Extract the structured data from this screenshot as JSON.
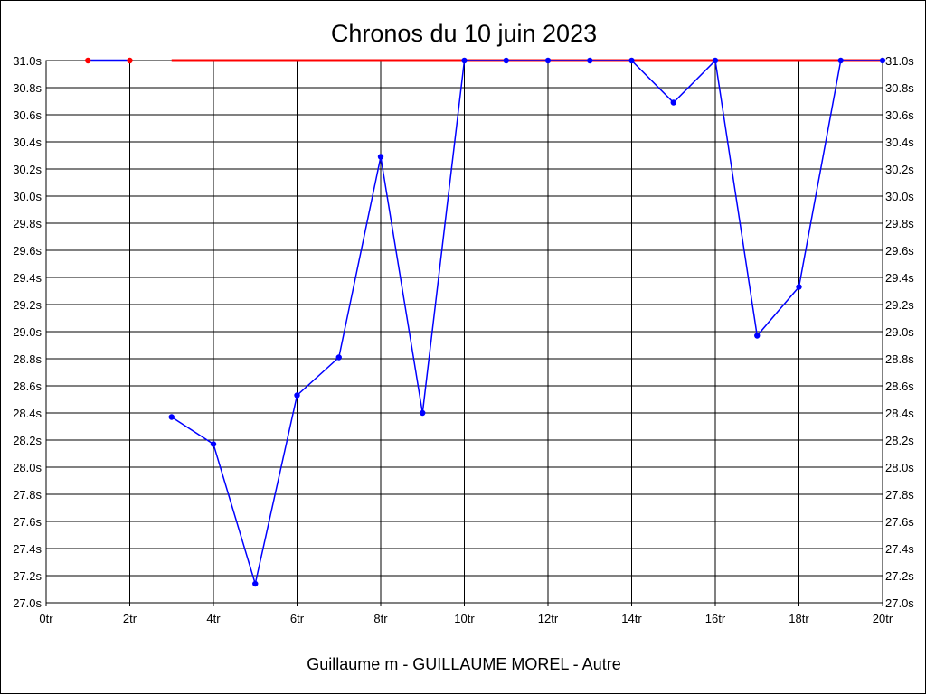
{
  "chart_data": {
    "type": "line",
    "title": "Chronos du 10 juin 2023",
    "xlabel": "Guillaume m - GUILLAUME MOREL - Autre",
    "ylabel": "",
    "xlim": [
      0,
      20
    ],
    "ylim": [
      27.0,
      31.0
    ],
    "x_ticks": [
      "0tr",
      "2tr",
      "4tr",
      "6tr",
      "8tr",
      "10tr",
      "12tr",
      "14tr",
      "16tr",
      "18tr",
      "20tr"
    ],
    "y_ticks": [
      "27.0s",
      "27.2s",
      "27.4s",
      "27.6s",
      "27.8s",
      "28.0s",
      "28.2s",
      "28.4s",
      "28.6s",
      "28.8s",
      "29.0s",
      "29.2s",
      "29.4s",
      "29.6s",
      "29.8s",
      "30.0s",
      "30.2s",
      "30.4s",
      "30.6s",
      "30.8s",
      "31.0s"
    ],
    "grid": true,
    "series": [
      {
        "color": "#0000ff",
        "x": [
          1,
          2,
          3,
          4,
          5,
          6,
          7,
          8,
          9,
          10,
          11,
          12,
          13,
          14,
          15,
          16,
          17,
          18,
          19,
          20
        ],
        "values": [
          31.0,
          31.0,
          28.37,
          28.17,
          27.14,
          28.53,
          28.81,
          30.29,
          28.4,
          31.0,
          31.0,
          31.0,
          31.0,
          31.0,
          30.69,
          31.0,
          28.97,
          29.33,
          31.0,
          31.0
        ],
        "segments": [
          [
            1,
            2
          ],
          [
            3,
            20
          ]
        ]
      },
      {
        "color": "#ff0000",
        "x": [
          3,
          20
        ],
        "values": [
          31.0,
          31.0
        ],
        "markers_at": [
          1,
          2
        ]
      }
    ]
  }
}
